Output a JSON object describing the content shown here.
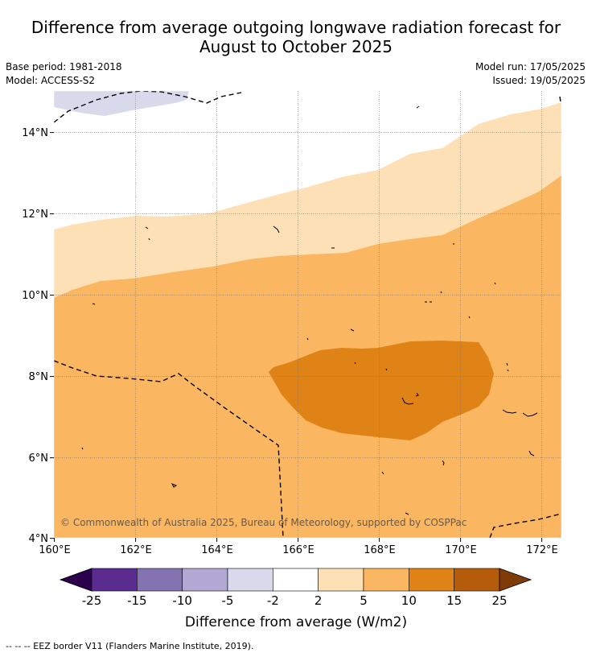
{
  "header": {
    "title_line1": "Difference from average outgoing longwave radiation forecast for",
    "title_line2": "August to October 2025",
    "base_period": "Base period: 1981-2018",
    "model": "Model: ACCESS-S2",
    "model_run": "Model run: 17/05/2025",
    "issued": "Issued: 19/05/2025"
  },
  "map": {
    "lon_ticks": [
      "160°E",
      "162°E",
      "164°E",
      "166°E",
      "168°E",
      "170°E",
      "172°E"
    ],
    "lat_ticks": [
      "4°N",
      "6°N",
      "8°N",
      "10°N",
      "12°N",
      "14°N"
    ],
    "copyright": "© Commonwealth of Australia 2025, Bureau of Meteorology, supported by COSPPac"
  },
  "colorbar": {
    "tick_labels": [
      "-25",
      "-15",
      "-10",
      "-5",
      "-2",
      "2",
      "5",
      "10",
      "15",
      "25"
    ],
    "colors": [
      "#5b2c8f",
      "#8473b1",
      "#b1a9d3",
      "#d9d9ec",
      "#ffffff",
      "#fde0b6",
      "#fbb662",
      "#e08316",
      "#b55c0b"
    ],
    "under_color": "#2d004b",
    "over_color": "#7f3b08",
    "label": "Difference from average (W/m2)"
  },
  "footer": {
    "eez_legend": "--  --  -- EEZ border V11 (Flanders Marine Institute, 2019)."
  }
}
